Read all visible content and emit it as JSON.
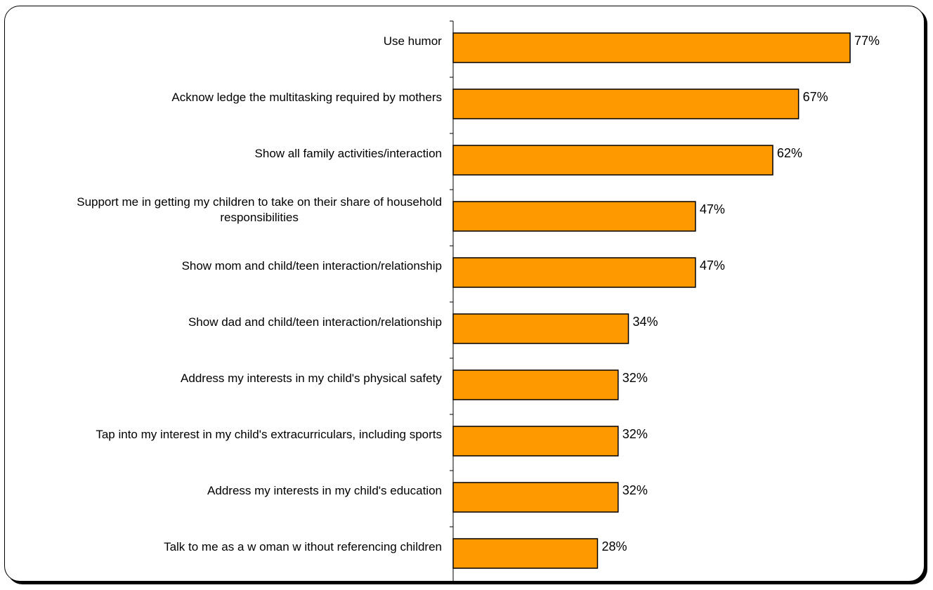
{
  "colors": {
    "bar_fill": "#FF9900",
    "bar_stroke": "#000000",
    "axis": "#000000"
  },
  "chart_data": {
    "type": "bar",
    "orientation": "horizontal",
    "title": "",
    "xlabel": "",
    "ylabel": "",
    "xlim": [
      0,
      100
    ],
    "grid": false,
    "value_suffix": "%",
    "categories": [
      [
        "Use humor"
      ],
      [
        "Acknow ledge the multitasking required by mothers"
      ],
      [
        "Show  all family activities/interaction"
      ],
      [
        "Support me in getting my children to take on their share of household",
        "responsibilities"
      ],
      [
        "Show  mom and child/teen interaction/relationship"
      ],
      [
        "Show  dad and child/teen interaction/relationship"
      ],
      [
        "Address my interests in my child's physical safety"
      ],
      [
        "Tap into my interest in my child's extracurriculars, including sports"
      ],
      [
        "Address my interests in my child's education"
      ],
      [
        "Talk to me as a w oman w ithout referencing children"
      ]
    ],
    "values": [
      77,
      67,
      62,
      47,
      47,
      34,
      32,
      32,
      32,
      28
    ],
    "value_labels": [
      "77%",
      "67%",
      "62%",
      "47%",
      "47%",
      "34%",
      "32%",
      "32%",
      "32%",
      "28%"
    ]
  }
}
